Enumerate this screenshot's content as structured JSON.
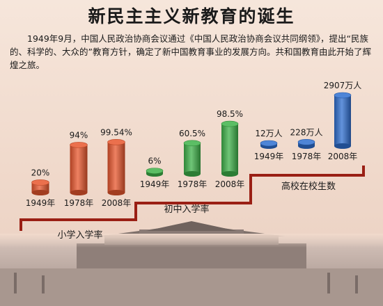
{
  "title": "新民主主义新教育的诞生",
  "intro": "1949年9月，中国人民政治协商会议通过《中国人民政治协商会议共同纲领》，提出“民族的、科学的、大众的”教育方针，确定了新中国教育事业的发展方向。共和国教育由此开始了辉煌之旅。",
  "chart_data": {
    "type": "bar",
    "groups": [
      {
        "name": "小学入学率",
        "color": "#e8572e",
        "points": [
          {
            "year": "1949年",
            "value": 20,
            "label": "20%"
          },
          {
            "year": "1978年",
            "value": 94,
            "label": "94%"
          },
          {
            "year": "2008年",
            "value": 99.54,
            "label": "99.54%"
          }
        ]
      },
      {
        "name": "初中入学率",
        "color": "#3fb24a",
        "points": [
          {
            "year": "1949年",
            "value": 6,
            "label": "6%"
          },
          {
            "year": "1978年",
            "value": 60.5,
            "label": "60.5%"
          },
          {
            "year": "2008年",
            "value": 98.5,
            "label": "98.5%"
          }
        ]
      },
      {
        "name": "高校在校生数",
        "color": "#2f6fd0",
        "points": [
          {
            "year": "1949年",
            "value": 12,
            "label": "12万人"
          },
          {
            "year": "1978年",
            "value": 228,
            "label": "228万人"
          },
          {
            "year": "2008年",
            "value": 2907,
            "label": "2907万人"
          }
        ]
      }
    ]
  }
}
